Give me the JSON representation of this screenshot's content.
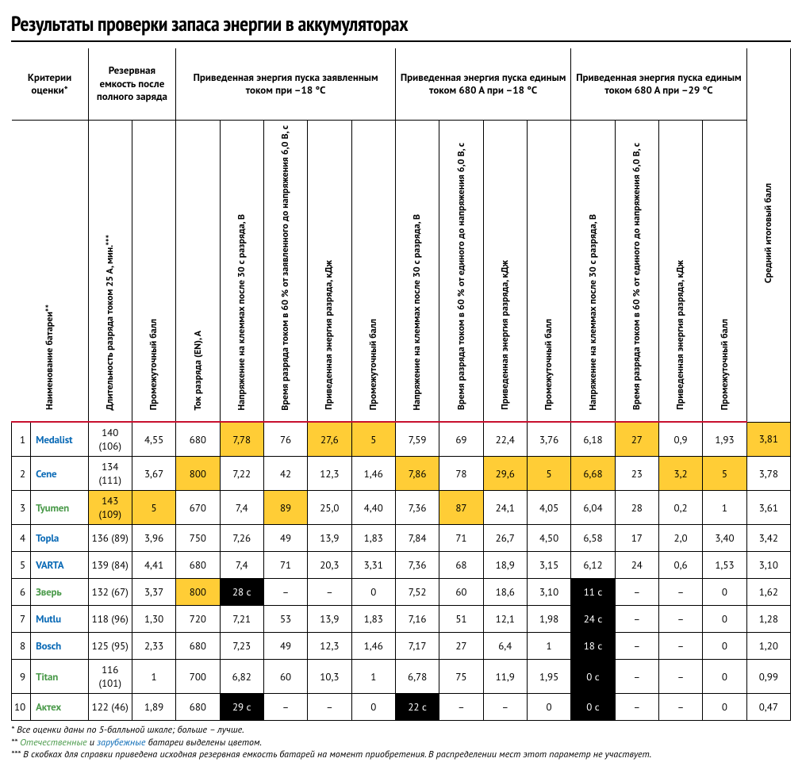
{
  "title": "Результаты проверки запаса энергии в аккумуляторах",
  "header": {
    "criteria": "Критерии оценки*",
    "col_name": "Наименование батареи**",
    "group_reserve": "Резервная емкость после полного заряда",
    "group_declared": "Приведенная энергия пуска заявленным током при –18 °C",
    "group_680_18": "Приведенная энергия пуска единым током 680 А при –18 °C",
    "group_680_29": "Приведенная энергия пуска единым током 680 А при –29 °C",
    "c_duration": "Длительность разряда током 25 А, мин.***",
    "c_score": "Промежуточный балл",
    "c_current": "Ток разряда (EN), А",
    "c_voltage30": "Напряжение на клеммах после 30 с разряда, В",
    "c_time60": "Время разряда током в 60 % от заявленного до напряжения 6,0 В, с",
    "c_time60u": "Время разряда током в 60 % от единого до напряжения 6,0 В, с",
    "c_energy": "Приведенная энергия разряда, кДж",
    "c_final": "Средний итоговый балл"
  },
  "rows": [
    {
      "rank": "1",
      "brand": "Medalist",
      "origin": "foreign",
      "cells": [
        {
          "v": "140 (106)"
        },
        {
          "v": "4,55"
        },
        {
          "v": "680"
        },
        {
          "v": "7,78",
          "hl": "y"
        },
        {
          "v": "76"
        },
        {
          "v": "27,6",
          "hl": "y"
        },
        {
          "v": "5",
          "hl": "y"
        },
        {
          "v": "7,59"
        },
        {
          "v": "69"
        },
        {
          "v": "22,4"
        },
        {
          "v": "3,76"
        },
        {
          "v": "6,18"
        },
        {
          "v": "27",
          "hl": "y"
        },
        {
          "v": "0,9"
        },
        {
          "v": "1,93"
        },
        {
          "v": "3,81",
          "hl": "y"
        }
      ]
    },
    {
      "rank": "2",
      "brand": "Cene",
      "origin": "foreign",
      "cells": [
        {
          "v": "134 (111)"
        },
        {
          "v": "3,67"
        },
        {
          "v": "800",
          "hl": "y"
        },
        {
          "v": "7,22"
        },
        {
          "v": "42"
        },
        {
          "v": "12,3"
        },
        {
          "v": "1,46"
        },
        {
          "v": "7,86",
          "hl": "y"
        },
        {
          "v": "78"
        },
        {
          "v": "29,6",
          "hl": "y"
        },
        {
          "v": "5",
          "hl": "y"
        },
        {
          "v": "6,68",
          "hl": "y"
        },
        {
          "v": "23"
        },
        {
          "v": "3,2",
          "hl": "y"
        },
        {
          "v": "5",
          "hl": "y"
        },
        {
          "v": "3,78"
        }
      ]
    },
    {
      "rank": "3",
      "brand": "Tyumen",
      "origin": "domestic",
      "cells": [
        {
          "v": "143 (109)",
          "hl": "y"
        },
        {
          "v": "5",
          "hl": "y"
        },
        {
          "v": "670"
        },
        {
          "v": "7,4"
        },
        {
          "v": "89",
          "hl": "y"
        },
        {
          "v": "25,0"
        },
        {
          "v": "4,40"
        },
        {
          "v": "7,36"
        },
        {
          "v": "87",
          "hl": "y"
        },
        {
          "v": "24,1"
        },
        {
          "v": "4,05"
        },
        {
          "v": "6,04"
        },
        {
          "v": "28"
        },
        {
          "v": "0,2"
        },
        {
          "v": "1"
        },
        {
          "v": "3,61"
        }
      ]
    },
    {
      "rank": "4",
      "brand": "Topla",
      "origin": "foreign",
      "cells": [
        {
          "v": "136 (89)"
        },
        {
          "v": "3,96"
        },
        {
          "v": "750"
        },
        {
          "v": "7,26"
        },
        {
          "v": "49"
        },
        {
          "v": "13,9"
        },
        {
          "v": "1,83"
        },
        {
          "v": "7,84"
        },
        {
          "v": "71"
        },
        {
          "v": "26,7"
        },
        {
          "v": "4,50"
        },
        {
          "v": "6,58"
        },
        {
          "v": "17"
        },
        {
          "v": "2,0"
        },
        {
          "v": "3,40"
        },
        {
          "v": "3,42"
        }
      ]
    },
    {
      "rank": "5",
      "brand": "VARTA",
      "origin": "foreign",
      "cells": [
        {
          "v": "139 (84)"
        },
        {
          "v": "4,41"
        },
        {
          "v": "680"
        },
        {
          "v": "7,4"
        },
        {
          "v": "71"
        },
        {
          "v": "20,3"
        },
        {
          "v": "3,31"
        },
        {
          "v": "7,36"
        },
        {
          "v": "68"
        },
        {
          "v": "18,9"
        },
        {
          "v": "3,15"
        },
        {
          "v": "6,12"
        },
        {
          "v": "24"
        },
        {
          "v": "0,6"
        },
        {
          "v": "1,53"
        },
        {
          "v": "3,10"
        }
      ]
    },
    {
      "rank": "6",
      "brand": "Зверь",
      "origin": "domestic",
      "cells": [
        {
          "v": "132 (67)"
        },
        {
          "v": "3,37"
        },
        {
          "v": "800",
          "hl": "y"
        },
        {
          "v": "28 с",
          "hl": "b"
        },
        {
          "v": "–"
        },
        {
          "v": "–"
        },
        {
          "v": "0"
        },
        {
          "v": "7,52"
        },
        {
          "v": "60"
        },
        {
          "v": "18,6"
        },
        {
          "v": "3,10"
        },
        {
          "v": "11 с",
          "hl": "b"
        },
        {
          "v": "–"
        },
        {
          "v": "–"
        },
        {
          "v": "0"
        },
        {
          "v": "1,62"
        }
      ]
    },
    {
      "rank": "7",
      "brand": "Mutlu",
      "origin": "foreign",
      "cells": [
        {
          "v": "118 (96)"
        },
        {
          "v": "1,30"
        },
        {
          "v": "720"
        },
        {
          "v": "7,21"
        },
        {
          "v": "53"
        },
        {
          "v": "13,9"
        },
        {
          "v": "1,83"
        },
        {
          "v": "7,16"
        },
        {
          "v": "51"
        },
        {
          "v": "12,1"
        },
        {
          "v": "1,98"
        },
        {
          "v": "24 с",
          "hl": "b"
        },
        {
          "v": "–"
        },
        {
          "v": "–"
        },
        {
          "v": "0"
        },
        {
          "v": "1,28"
        }
      ]
    },
    {
      "rank": "8",
      "brand": "Bosch",
      "origin": "foreign",
      "cells": [
        {
          "v": "125 (95)"
        },
        {
          "v": "2,33"
        },
        {
          "v": "680"
        },
        {
          "v": "7,23"
        },
        {
          "v": "49"
        },
        {
          "v": "12,3"
        },
        {
          "v": "1,46"
        },
        {
          "v": "7,17"
        },
        {
          "v": "27"
        },
        {
          "v": "6,4"
        },
        {
          "v": "1"
        },
        {
          "v": "18 с",
          "hl": "b"
        },
        {
          "v": "–"
        },
        {
          "v": "–"
        },
        {
          "v": "0"
        },
        {
          "v": "1,20"
        }
      ]
    },
    {
      "rank": "9",
      "brand": "Titan",
      "origin": "domestic",
      "cells": [
        {
          "v": "116 (101)"
        },
        {
          "v": "1"
        },
        {
          "v": "700"
        },
        {
          "v": "6,82"
        },
        {
          "v": "60"
        },
        {
          "v": "10,3"
        },
        {
          "v": "1"
        },
        {
          "v": "6,78"
        },
        {
          "v": "75"
        },
        {
          "v": "11,9"
        },
        {
          "v": "1,95"
        },
        {
          "v": "0 с",
          "hl": "b"
        },
        {
          "v": "–"
        },
        {
          "v": "–"
        },
        {
          "v": "0"
        },
        {
          "v": "0,99"
        }
      ]
    },
    {
      "rank": "10",
      "brand": "Актех",
      "origin": "domestic",
      "cells": [
        {
          "v": "122 (46)"
        },
        {
          "v": "1,89"
        },
        {
          "v": "680"
        },
        {
          "v": "29 с",
          "hl": "b"
        },
        {
          "v": "–"
        },
        {
          "v": "–"
        },
        {
          "v": "0"
        },
        {
          "v": "22 с",
          "hl": "b"
        },
        {
          "v": "–"
        },
        {
          "v": "–"
        },
        {
          "v": "0"
        },
        {
          "v": "0 с",
          "hl": "b"
        },
        {
          "v": "–"
        },
        {
          "v": "–"
        },
        {
          "v": "0"
        },
        {
          "v": "0,47"
        }
      ]
    }
  ],
  "footnotes": {
    "l1": "* Все оценки даны по 5-балльной шкале; больше – лучше.",
    "l2a": "** ",
    "l2_domestic": "Отечественные",
    "l2_mid": " и ",
    "l2_foreign": "зарубежные",
    "l2b": " батареи выделены цветом.",
    "l3": "*** В скобках для справки приведена исходная резервная емкость батарей на момент приобретения. В распределении мест этот параметр не участвует."
  }
}
